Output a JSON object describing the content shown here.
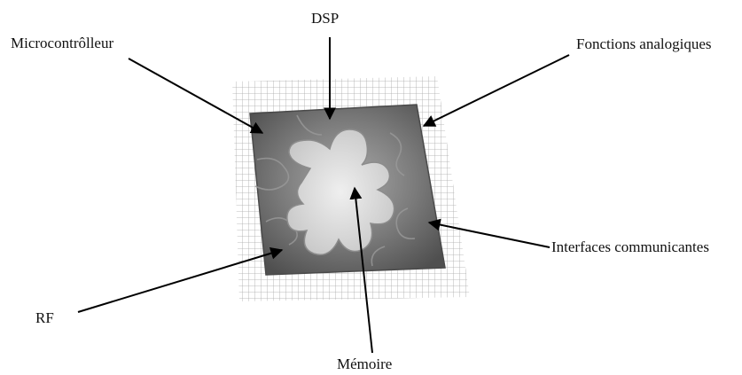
{
  "labels": {
    "dsp": "DSP",
    "microcontroleur": "Microcontrôlleur",
    "fonctions_analogiques": "Fonctions analogiques",
    "interfaces_communicantes": "Interfaces communicantes",
    "rf": "RF",
    "memoire": "Mémoire"
  },
  "colors": {
    "chip_dark": "#5a5a5a",
    "chip_mid": "#8a8a8a",
    "center_piece": "#d4d4d4",
    "grid": "#9a9a9a",
    "arrow": "#000000"
  }
}
